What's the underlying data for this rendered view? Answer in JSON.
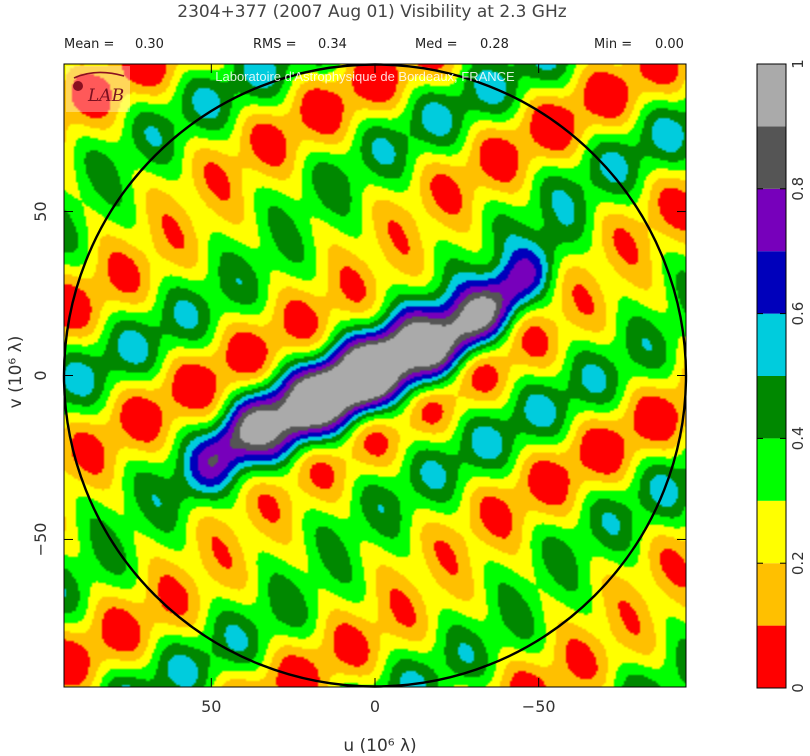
{
  "title": "2304+377  (2007 Aug 01)   Visibility at  2.3 GHz",
  "stats": [
    {
      "label": "Mean =",
      "value": "0.30"
    },
    {
      "label": "RMS =",
      "value": "0.34"
    },
    {
      "label": "Med =",
      "value": "0.28"
    },
    {
      "label": "Min =",
      "value": "0.00"
    }
  ],
  "watermark": "Laboratoire d'Astrophysique de Bordeaux, FRANCE",
  "logo": "LAB",
  "chart_data": {
    "type": "heatmap",
    "xlabel": "u  (10⁶ λ)",
    "ylabel": "v  (10⁶ λ)",
    "xlim": [
      95,
      -95
    ],
    "ylim": [
      -95,
      95
    ],
    "x_ticks": [
      50,
      0,
      -50
    ],
    "x_tick_labels": [
      "50",
      "0",
      "−50"
    ],
    "y_ticks": [
      50,
      0,
      -50
    ],
    "y_tick_labels": [
      "50",
      "0",
      "−50"
    ],
    "circle_radius": 95,
    "colorbar": {
      "levels": [
        0,
        0.1,
        0.2,
        0.3,
        0.4,
        0.5,
        0.6,
        0.7,
        0.8,
        0.9,
        1.0
      ],
      "colors": [
        "#ff0000",
        "#ffc000",
        "#ffff00",
        "#00ff00",
        "#008800",
        "#00ccdd",
        "#0000bb",
        "#7700bb",
        "#555555",
        "#aaaaaa"
      ],
      "tick_values": [
        0,
        0.2,
        0.4,
        0.6,
        0.8,
        1
      ],
      "tick_labels": [
        "0",
        "0.2",
        "0.4",
        "0.6",
        "0.8",
        "1"
      ]
    },
    "peaks": [
      {
        "u": 0,
        "v": 0,
        "amplitude": 0.95
      },
      {
        "u": -20,
        "v": 8,
        "amplitude": 0.78
      },
      {
        "u": 19,
        "v": -8,
        "amplitude": 0.82
      },
      {
        "u": -40,
        "v": 23,
        "amplitude": 0.68
      },
      {
        "u": 41,
        "v": -18,
        "amplitude": 0.65
      }
    ],
    "grid": false
  }
}
